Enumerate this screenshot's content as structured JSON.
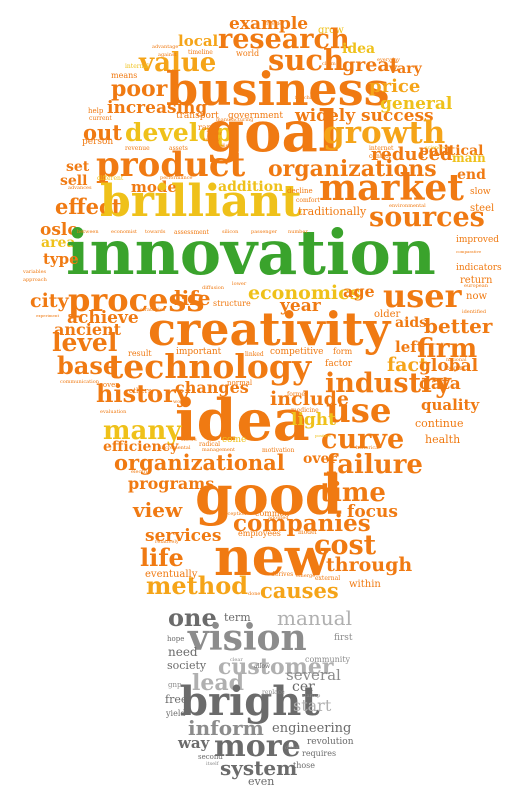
{
  "image": {
    "subject": "word cloud shaped like a light bulb",
    "colors": {
      "orange": "#f07a12",
      "amber": "#f5a418",
      "yellow": "#efc11a",
      "green": "#3aa32c",
      "gray_dark": "#6b6b6b",
      "gray_mid": "#8c8c8c",
      "gray_light": "#b0b0b0"
    }
  },
  "words": {
    "example": "example",
    "grow": "grow",
    "local": "local",
    "research": "research",
    "such": "such",
    "idea_small": "idea",
    "great": "great",
    "value": "value",
    "poor": "poor",
    "vary": "vary",
    "business": "business",
    "price": "price",
    "general": "general",
    "increasing": "increasing",
    "widely": "widely",
    "success": "success",
    "out": "out",
    "develop": "develop",
    "goal": "goal",
    "growth": "growth",
    "political": "political",
    "product": "product",
    "organizations": "organizations",
    "reduced": "reduced",
    "set": "set",
    "main": "main",
    "end": "end",
    "sell": "sell",
    "mode": "mode",
    "addition": "addition",
    "market": "market",
    "effect": "effect",
    "brilliant": "brilliant",
    "traditionally": "traditionally",
    "slow": "slow",
    "steel": "steel",
    "sources": "sources",
    "oslo": "oslo",
    "area": "area",
    "innovation": "innovation",
    "improved": "improved",
    "type": "type",
    "indicators": "indicators",
    "return": "return",
    "process": "process",
    "economics": "economics",
    "age": "age",
    "user": "user",
    "city": "city",
    "life_top": "life",
    "year": "year",
    "now": "now",
    "achieve": "achieve",
    "creativity": "creativity",
    "ancient": "ancient",
    "older": "older",
    "aids": "aids",
    "better": "better",
    "level": "level",
    "left": "left",
    "firm": "firm",
    "base": "base",
    "technology": "technology",
    "fact": "fact",
    "global": "global",
    "industry": "industry",
    "data": "data",
    "history": "history",
    "changes": "changes",
    "include": "include",
    "quality": "quality",
    "use": "use",
    "idea": "idea",
    "light": "light",
    "continue": "continue",
    "many": "many",
    "curve": "curve",
    "efficiency": "efficiency",
    "health": "health",
    "organizational": "organizational",
    "over": "over",
    "failure": "failure",
    "programs": "programs",
    "good": "good",
    "time": "time",
    "view": "view",
    "focus": "focus",
    "companies": "companies",
    "services": "services",
    "cost": "cost",
    "life": "life",
    "new": "new",
    "through": "through",
    "method": "method",
    "causes": "causes",
    "eventually": "eventually",
    "within": "within",
    "one": "one",
    "term": "term",
    "manual": "manual",
    "vision": "vision",
    "first": "first",
    "need": "need",
    "customer": "customer",
    "society": "society",
    "community": "community",
    "lead": "lead",
    "several": "several",
    "bright": "bright",
    "start": "start",
    "free": "free",
    "cer": "cer",
    "yield": "yield",
    "inform": "inform",
    "engineering": "engineering",
    "way": "way",
    "more": "more",
    "revolution": "revolution",
    "system": "system",
    "requires": "requires",
    "even": "even",
    "second": "second",
    "those": "those",
    "startup": "startup",
    "gnp": "gnp",
    "hope": "hope"
  },
  "tiny_words": {
    "t1": "advantage",
    "t2": "against",
    "t3": "timeline",
    "t4": "world",
    "t5": "internal",
    "t6": "means",
    "t7": "fairchild",
    "t8": "current",
    "t9": "help",
    "t10": "transport",
    "t11": "government",
    "t12": "rapid",
    "t13": "order",
    "t14": "person",
    "t15": "revenue",
    "t16": "assets",
    "t17": "survey",
    "t18": "internet",
    "t19": "control",
    "t20": "science",
    "t21": "advances",
    "t22": "different",
    "t23": "performance",
    "t24": "decline",
    "t25": "comfort",
    "t26": "environmental",
    "t27": "between",
    "t28": "economist",
    "t29": "towards",
    "t30": "assessment",
    "t31": "silicon",
    "t32": "passenger",
    "t33": "number",
    "t34": "variables",
    "t35": "approach",
    "t36": "lower",
    "t37": "european",
    "t38": "experiment",
    "t39": "strategies",
    "t40": "structure",
    "t41": "identified",
    "t42": "result",
    "t43": "important",
    "t44": "competitive",
    "t45": "form",
    "t46": "factor",
    "t47": "national",
    "t48": "begin",
    "t49": "communication",
    "t50": "cover",
    "t51": "others",
    "t52": "normal",
    "t53": "former",
    "t54": "medicine",
    "t55": "work",
    "t56": "evaluation",
    "t57": "shows",
    "t58": "radical",
    "t59": "come",
    "t60": "incremental",
    "t61": "management",
    "t62": "motivation",
    "t63": "historical",
    "t64": "common",
    "t65": "employees",
    "t66": "model",
    "t67": "derives",
    "t68": "emerge",
    "t69": "external",
    "t70": "done",
    "t71": "positive",
    "t72": "comparative",
    "t73": "everyday",
    "t74": "manufacturing",
    "t75": "studies",
    "t76": "claim",
    "t77": "electric",
    "t78": "perception",
    "t79": "adopted",
    "t80": "relatively",
    "t81": "corporations",
    "t82": "diffusion",
    "t83": "clear",
    "t84": "allow",
    "t85": "replace",
    "t86": "diesel",
    "t87": "itself",
    "t88": "provide",
    "t89": "linked"
  }
}
